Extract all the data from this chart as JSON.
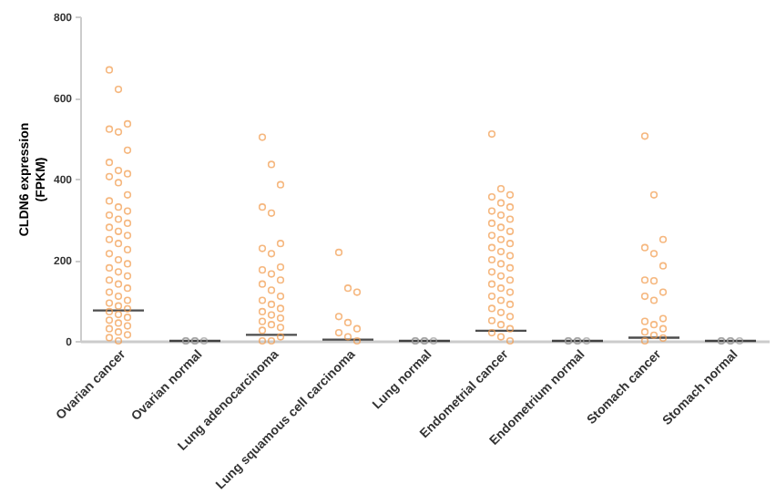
{
  "chart_data": {
    "type": "scatter",
    "ylabel": "CLDN6 expression\n(FPKM)",
    "categories": [
      "Ovarian cancer",
      "Ovarian normal",
      "Lung adenocarcinoma",
      "Lung squamous cell carcinoma",
      "Lung normal",
      "Endometrial cancer",
      "Endometrium normal",
      "Stomach cancer",
      "Stomach normal"
    ],
    "ylim": [
      0,
      800
    ],
    "yticks": [
      0,
      200,
      400,
      600,
      800
    ],
    "grid": false,
    "marker": "circle",
    "series": [
      {
        "color": "#f29a4a",
        "x": [
          "Ovarian cancer",
          "Ovarian cancer",
          "Ovarian cancer",
          "Ovarian cancer",
          "Ovarian cancer",
          "Ovarian cancer",
          "Ovarian cancer",
          "Ovarian cancer",
          "Ovarian cancer",
          "Ovarian cancer",
          "Ovarian cancer",
          "Ovarian cancer",
          "Ovarian cancer",
          "Ovarian cancer",
          "Ovarian cancer",
          "Ovarian cancer",
          "Ovarian cancer",
          "Ovarian cancer",
          "Ovarian cancer",
          "Ovarian cancer",
          "Ovarian cancer",
          "Ovarian cancer",
          "Ovarian cancer",
          "Ovarian cancer",
          "Ovarian cancer",
          "Ovarian cancer",
          "Ovarian cancer",
          "Ovarian cancer",
          "Ovarian cancer",
          "Ovarian cancer",
          "Ovarian cancer",
          "Ovarian cancer",
          "Ovarian cancer",
          "Ovarian cancer",
          "Ovarian cancer",
          "Ovarian cancer",
          "Ovarian cancer",
          "Ovarian cancer",
          "Ovarian cancer",
          "Ovarian cancer",
          "Ovarian cancer",
          "Ovarian cancer",
          "Ovarian cancer",
          "Ovarian cancer",
          "Ovarian cancer",
          "Ovarian cancer",
          "Ovarian cancer",
          "Ovarian cancer",
          "Ovarian cancer",
          "Ovarian cancer"
        ],
        "values": [
          668,
          620,
          535,
          522,
          515,
          470,
          440,
          420,
          412,
          405,
          390,
          360,
          345,
          330,
          320,
          310,
          300,
          290,
          280,
          270,
          260,
          250,
          240,
          225,
          215,
          200,
          190,
          180,
          170,
          160,
          150,
          140,
          130,
          120,
          110,
          100,
          93,
          86,
          79,
          72,
          65,
          58,
          51,
          44,
          37,
          30,
          22,
          15,
          8,
          0
        ]
      },
      {
        "color": "#9a9a9a",
        "x": [
          "Ovarian normal",
          "Ovarian normal",
          "Ovarian normal",
          "Ovarian normal",
          "Ovarian normal"
        ],
        "values": [
          0,
          0,
          0,
          0,
          0
        ]
      },
      {
        "color": "#f29a4a",
        "x": [
          "Lung adenocarcinoma",
          "Lung adenocarcinoma",
          "Lung adenocarcinoma",
          "Lung adenocarcinoma",
          "Lung adenocarcinoma",
          "Lung adenocarcinoma",
          "Lung adenocarcinoma",
          "Lung adenocarcinoma",
          "Lung adenocarcinoma",
          "Lung adenocarcinoma",
          "Lung adenocarcinoma",
          "Lung adenocarcinoma",
          "Lung adenocarcinoma",
          "Lung adenocarcinoma",
          "Lung adenocarcinoma",
          "Lung adenocarcinoma",
          "Lung adenocarcinoma",
          "Lung adenocarcinoma",
          "Lung adenocarcinoma",
          "Lung adenocarcinoma",
          "Lung adenocarcinoma",
          "Lung adenocarcinoma",
          "Lung adenocarcinoma",
          "Lung adenocarcinoma",
          "Lung adenocarcinoma",
          "Lung adenocarcinoma",
          "Lung adenocarcinoma",
          "Lung adenocarcinoma"
        ],
        "values": [
          502,
          435,
          385,
          330,
          315,
          240,
          228,
          215,
          182,
          175,
          165,
          150,
          140,
          125,
          110,
          100,
          90,
          80,
          72,
          64,
          56,
          48,
          40,
          33,
          26,
          0,
          10,
          0
        ]
      },
      {
        "color": "#f29a4a",
        "x": [
          "Lung squamous cell carcinoma",
          "Lung squamous cell carcinoma",
          "Lung squamous cell carcinoma",
          "Lung squamous cell carcinoma",
          "Lung squamous cell carcinoma",
          "Lung squamous cell carcinoma",
          "Lung squamous cell carcinoma",
          "Lung squamous cell carcinoma",
          "Lung squamous cell carcinoma"
        ],
        "values": [
          218,
          130,
          120,
          60,
          45,
          30,
          20,
          10,
          0
        ]
      },
      {
        "color": "#9a9a9a",
        "x": [
          "Lung normal",
          "Lung normal",
          "Lung normal",
          "Lung normal",
          "Lung normal"
        ],
        "values": [
          0,
          0,
          0,
          0,
          0
        ]
      },
      {
        "color": "#f29a4a",
        "x": [
          "Endometrial cancer",
          "Endometrial cancer",
          "Endometrial cancer",
          "Endometrial cancer",
          "Endometrial cancer",
          "Endometrial cancer",
          "Endometrial cancer",
          "Endometrial cancer",
          "Endometrial cancer",
          "Endometrial cancer",
          "Endometrial cancer",
          "Endometrial cancer",
          "Endometrial cancer",
          "Endometrial cancer",
          "Endometrial cancer",
          "Endometrial cancer",
          "Endometrial cancer",
          "Endometrial cancer",
          "Endometrial cancer",
          "Endometrial cancer",
          "Endometrial cancer",
          "Endometrial cancer",
          "Endometrial cancer",
          "Endometrial cancer",
          "Endometrial cancer",
          "Endometrial cancer",
          "Endometrial cancer",
          "Endometrial cancer",
          "Endometrial cancer",
          "Endometrial cancer",
          "Endometrial cancer",
          "Endometrial cancer",
          "Endometrial cancer",
          "Endometrial cancer",
          "Endometrial cancer",
          "Endometrial cancer",
          "Endometrial cancer",
          "Endometrial cancer",
          "Endometrial cancer"
        ],
        "values": [
          510,
          375,
          360,
          355,
          340,
          330,
          320,
          310,
          300,
          290,
          280,
          270,
          260,
          250,
          240,
          230,
          220,
          210,
          200,
          190,
          180,
          170,
          160,
          150,
          140,
          130,
          120,
          110,
          100,
          90,
          80,
          70,
          60,
          50,
          40,
          30,
          20,
          10,
          0
        ]
      },
      {
        "color": "#9a9a9a",
        "x": [
          "Endometrium normal",
          "Endometrium normal",
          "Endometrium normal",
          "Endometrium normal",
          "Endometrium normal"
        ],
        "values": [
          0,
          0,
          0,
          0,
          0
        ]
      },
      {
        "color": "#f29a4a",
        "x": [
          "Stomach cancer",
          "Stomach cancer",
          "Stomach cancer",
          "Stomach cancer",
          "Stomach cancer",
          "Stomach cancer",
          "Stomach cancer",
          "Stomach cancer",
          "Stomach cancer",
          "Stomach cancer",
          "Stomach cancer",
          "Stomach cancer",
          "Stomach cancer",
          "Stomach cancer",
          "Stomach cancer",
          "Stomach cancer",
          "Stomach cancer",
          "Stomach cancer",
          "Stomach cancer"
        ],
        "values": [
          505,
          360,
          250,
          230,
          215,
          185,
          150,
          148,
          120,
          110,
          100,
          55,
          48,
          40,
          30,
          22,
          14,
          7,
          0
        ]
      },
      {
        "color": "#9a9a9a",
        "x": [
          "Stomach normal",
          "Stomach normal",
          "Stomach normal",
          "Stomach normal",
          "Stomach normal"
        ],
        "values": [
          0,
          0,
          0,
          0,
          0
        ]
      },
      {
        "type": "box",
        "color": "#000000",
        "boxes": [
          {
            "low": 75,
            "q1": 75,
            "median": 75,
            "q3": 75,
            "high": 75
          },
          {
            "low": 0,
            "q1": 0,
            "median": 0,
            "q3": 0,
            "high": 0
          },
          {
            "low": 15,
            "q1": 15,
            "median": 15,
            "q3": 15,
            "high": 15
          },
          {
            "low": 3,
            "q1": 3,
            "median": 3,
            "q3": 3,
            "high": 3
          },
          {
            "low": 0,
            "q1": 0,
            "median": 0,
            "q3": 0,
            "high": 0
          },
          {
            "low": 25,
            "q1": 25,
            "median": 25,
            "q3": 25,
            "high": 25
          },
          {
            "low": 0,
            "q1": 0,
            "median": 0,
            "q3": 0,
            "high": 0
          },
          {
            "low": 8,
            "q1": 8,
            "median": 8,
            "q3": 8,
            "high": 8
          },
          {
            "low": 0,
            "q1": 0,
            "median": 0,
            "q3": 0,
            "high": 0
          }
        ]
      }
    ]
  }
}
